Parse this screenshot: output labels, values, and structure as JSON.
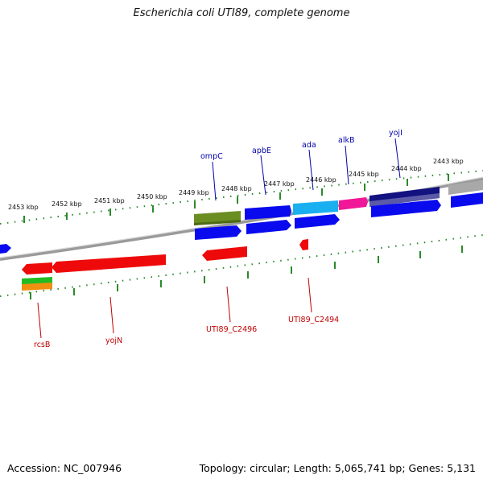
{
  "title": "Escherichia coli UTI89, complete genome",
  "accession": "Accession: NC_007946",
  "topology": "Topology: circular; Length: 5,065,741 bp; Genes: 5,131",
  "colors": {
    "forward": "#0a0aee",
    "reverse": "#ee0a0a",
    "olive": "#6b8e23",
    "cyan": "#1ab0f0",
    "magenta": "#f01898",
    "navy": "#121280",
    "grey": "#a8a8a8",
    "green": "#22bb22",
    "orange": "#f09010",
    "tick": "#2a8a2a",
    "backbone": "#8a8a8a",
    "label_top": "#0000aa",
    "label_bottom": "#c00000"
  },
  "kbp_labels": [
    "2453 kbp",
    "2452 kbp",
    "2451 kbp",
    "2450 kbp",
    "2449 kbp",
    "2448 kbp",
    "2447 kbp",
    "2446 kbp",
    "2445 kbp",
    "2444 kbp",
    "2443 kbp"
  ],
  "gene_labels_top": [
    "ompC",
    "apbE",
    "ada",
    "alkB",
    "yojI"
  ],
  "gene_labels_bottom": [
    "rcsB",
    "yojN",
    "UTI89_C2496",
    "UTI89_C2494"
  ]
}
